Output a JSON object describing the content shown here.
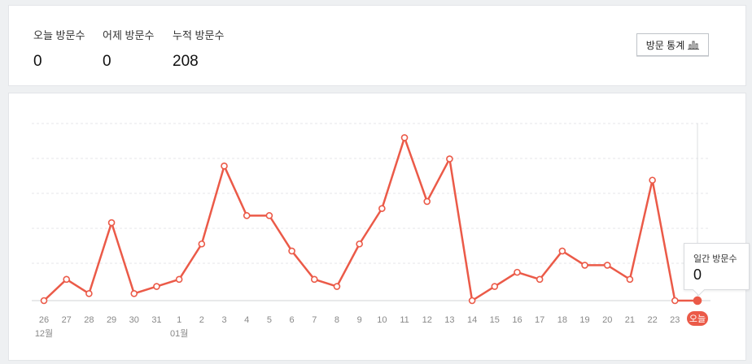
{
  "stats": {
    "today_label": "오늘 방문수",
    "today_value": "0",
    "yesterday_label": "어제 방문수",
    "yesterday_value": "0",
    "total_label": "누적 방문수",
    "total_value": "208",
    "button_label": "방문 통계",
    "button_icon": "bar-chart-icon"
  },
  "tooltip": {
    "label": "일간 방문수",
    "value": "0"
  },
  "colors": {
    "line": "#eb5a48",
    "today_badge": "#eb5a48",
    "grid": "#e4e6e9",
    "tick": "#888888"
  },
  "chart_data": {
    "type": "line",
    "categories": [
      "26",
      "27",
      "28",
      "29",
      "30",
      "31",
      "1",
      "2",
      "3",
      "4",
      "5",
      "6",
      "7",
      "8",
      "9",
      "10",
      "11",
      "12",
      "13",
      "14",
      "15",
      "16",
      "17",
      "18",
      "19",
      "20",
      "21",
      "22",
      "23",
      "오늘"
    ],
    "month_labels": [
      {
        "index": 0,
        "text": "12월"
      },
      {
        "index": 6,
        "text": "01월"
      }
    ],
    "series": [
      {
        "values": [
          0,
          3,
          1,
          11,
          1,
          2,
          3,
          8,
          19,
          12,
          12,
          7,
          3,
          2,
          8,
          13,
          23,
          14,
          20,
          0,
          2,
          4,
          3,
          7,
          5,
          5,
          3,
          17,
          0,
          0
        ]
      }
    ],
    "ylim": [
      0,
      25
    ],
    "grid": true,
    "highlight_index": 29
  }
}
